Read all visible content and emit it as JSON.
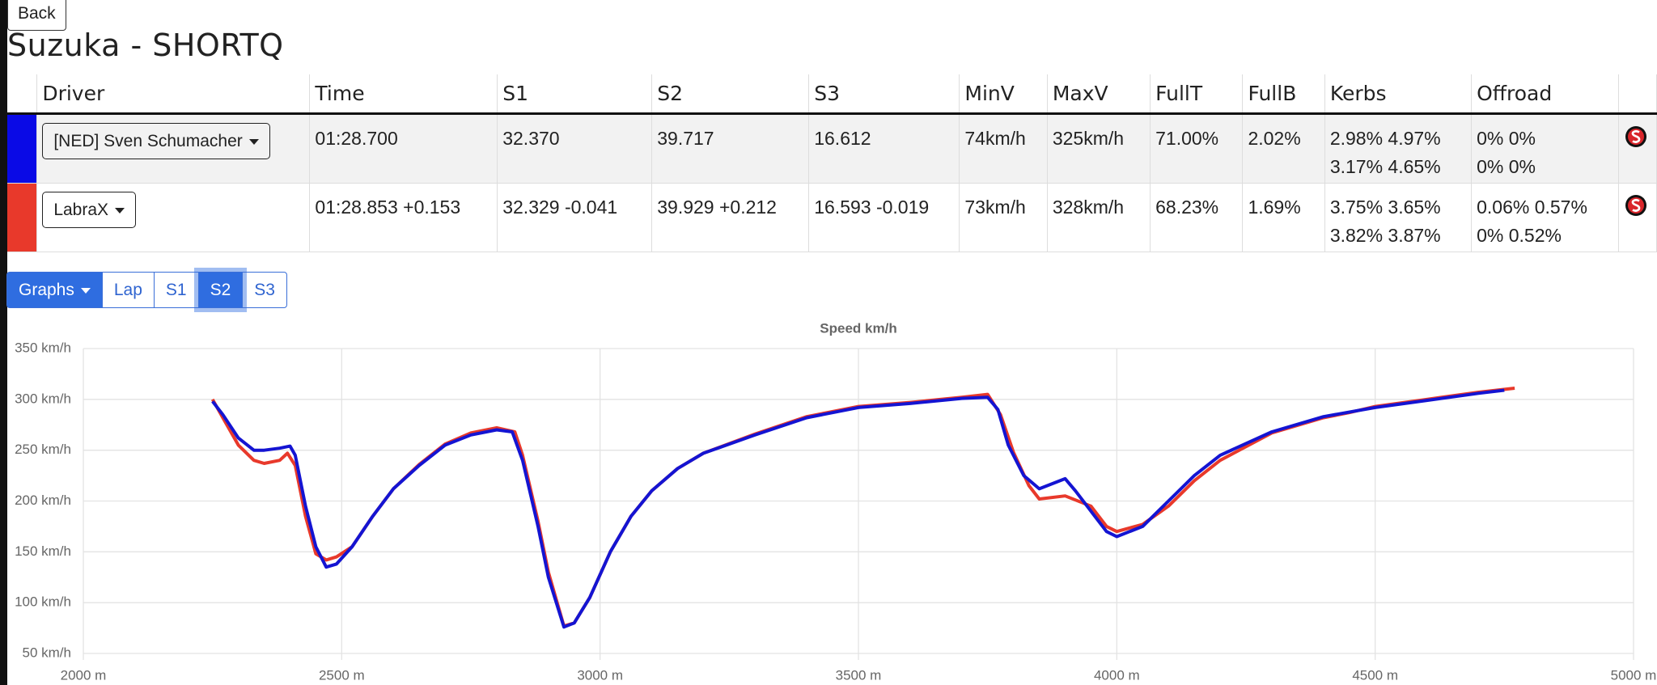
{
  "back_button": "Back",
  "title": "Suzuka - SHORTQ",
  "table": {
    "headers": [
      "Driver",
      "Time",
      "S1",
      "S2",
      "S3",
      "MinV",
      "MaxV",
      "FullT",
      "FullB",
      "Kerbs",
      "Offroad"
    ],
    "rows": [
      {
        "color": "#0a0ae6",
        "driver": "[NED] Sven Schumacher",
        "cells": [
          "01:28.700",
          "32.370",
          "39.717",
          "16.612",
          "74km/h",
          "325km/h",
          "71.00%",
          "2.02%"
        ],
        "kerbs": [
          "2.98% 4.97%",
          "3.17% 4.65%"
        ],
        "offroad": [
          "0% 0%",
          "0% 0%"
        ]
      },
      {
        "color": "#e8392b",
        "driver": "LabraX",
        "cells": [
          "01:28.853 +0.153",
          "32.329 -0.041",
          "39.929 +0.212",
          "16.593 -0.019",
          "73km/h",
          "328km/h",
          "68.23%",
          "1.69%"
        ],
        "kerbs": [
          "3.75% 3.65%",
          "3.82% 3.87%"
        ],
        "offroad": [
          "0.06% 0.57%",
          "0% 0.52%"
        ]
      }
    ]
  },
  "tabs": {
    "dropdown": "Graphs",
    "buttons": [
      "Lap",
      "S1",
      "S2",
      "S3"
    ],
    "active": 2
  },
  "chart_data": {
    "type": "line",
    "title": "Speed km/h",
    "xlim": [
      2000,
      5000
    ],
    "xticks": [
      {
        "value": 2000,
        "label": "2000 m"
      },
      {
        "value": 2500,
        "label": "2500 m"
      },
      {
        "value": 3000,
        "label": "3000 m"
      },
      {
        "value": 3500,
        "label": "3500 m"
      },
      {
        "value": 4000,
        "label": "4000 m"
      },
      {
        "value": 4500,
        "label": "4500 m"
      },
      {
        "value": 5000,
        "label": "5000 m"
      }
    ],
    "ylim": [
      50,
      350
    ],
    "yticks": [
      {
        "value": 50,
        "label": "50 km/h"
      },
      {
        "value": 100,
        "label": "100 km/h"
      },
      {
        "value": 150,
        "label": "150 km/h"
      },
      {
        "value": 200,
        "label": "200 km/h"
      },
      {
        "value": 250,
        "label": "250 km/h"
      },
      {
        "value": 300,
        "label": "300 km/h"
      },
      {
        "value": 350,
        "label": "350 km/h"
      }
    ],
    "grid": true,
    "series": [
      {
        "color": "#e8392b",
        "x": [
          2250,
          2270,
          2300,
          2330,
          2350,
          2380,
          2395,
          2410,
          2430,
          2450,
          2470,
          2490,
          2520,
          2560,
          2600,
          2650,
          2700,
          2750,
          2800,
          2835,
          2850,
          2880,
          2900,
          2930,
          2950,
          2980,
          3020,
          3060,
          3100,
          3150,
          3200,
          3300,
          3400,
          3500,
          3600,
          3700,
          3750,
          3775,
          3800,
          3830,
          3850,
          3900,
          3950,
          3980,
          4000,
          4050,
          4100,
          4150,
          4200,
          4300,
          4400,
          4450,
          4500,
          4600,
          4700,
          4770
        ],
        "values": [
          300,
          282,
          255,
          240,
          237,
          240,
          247,
          235,
          185,
          148,
          142,
          145,
          155,
          185,
          212,
          236,
          256,
          267,
          272,
          268,
          245,
          180,
          130,
          77,
          80,
          105,
          150,
          185,
          210,
          232,
          247,
          266,
          283,
          293,
          297,
          302,
          305,
          285,
          248,
          215,
          202,
          205,
          195,
          175,
          170,
          177,
          195,
          220,
          240,
          267,
          282,
          287,
          293,
          300,
          307,
          311
        ]
      },
      {
        "color": "#1414d2",
        "x": [
          2250,
          2270,
          2300,
          2330,
          2350,
          2380,
          2400,
          2410,
          2430,
          2450,
          2470,
          2490,
          2520,
          2560,
          2600,
          2650,
          2700,
          2750,
          2800,
          2830,
          2850,
          2880,
          2900,
          2930,
          2950,
          2980,
          3020,
          3060,
          3100,
          3150,
          3200,
          3300,
          3400,
          3500,
          3600,
          3700,
          3750,
          3770,
          3790,
          3820,
          3850,
          3880,
          3900,
          3920,
          3950,
          3980,
          4000,
          4050,
          4100,
          4150,
          4200,
          4300,
          4400,
          4500,
          4600,
          4700,
          4750
        ],
        "values": [
          298,
          285,
          262,
          250,
          250,
          252,
          254,
          245,
          195,
          155,
          135,
          138,
          155,
          185,
          212,
          235,
          255,
          265,
          270,
          268,
          240,
          175,
          125,
          76,
          80,
          105,
          150,
          185,
          210,
          232,
          247,
          265,
          282,
          292,
          296,
          301,
          302,
          290,
          255,
          225,
          212,
          218,
          222,
          210,
          190,
          170,
          165,
          175,
          200,
          225,
          245,
          268,
          283,
          292,
          299,
          306,
          309
        ]
      }
    ]
  }
}
